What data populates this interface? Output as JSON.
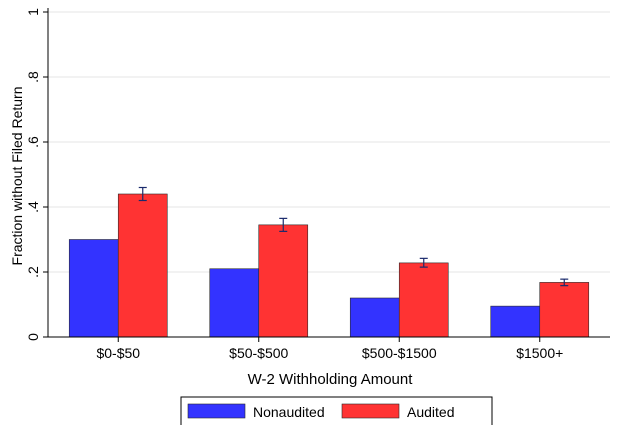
{
  "chart_data": {
    "type": "bar",
    "title": "",
    "xlabel": "W-2 Withholding Amount",
    "ylabel": "Fraction without Filed Return",
    "ylim": [
      0,
      1
    ],
    "yticks": [
      0,
      0.2,
      0.4,
      0.6,
      0.8,
      1
    ],
    "ytick_labels": [
      "0",
      ".2",
      ".4",
      ".6",
      ".8",
      "1"
    ],
    "grid": true,
    "legend_position": "bottom",
    "categories": [
      "$0-$50",
      "$50-$500",
      "$500-$1500",
      "$1500+"
    ],
    "series": [
      {
        "name": "Nonaudited",
        "color": "#3333ff",
        "values": [
          0.3,
          0.21,
          0.12,
          0.095
        ]
      },
      {
        "name": "Audited",
        "color": "#ff3333",
        "values": [
          0.44,
          0.345,
          0.228,
          0.168
        ],
        "error": [
          [
            0.42,
            0.46
          ],
          [
            0.325,
            0.365
          ],
          [
            0.215,
            0.242
          ],
          [
            0.158,
            0.178
          ]
        ]
      }
    ]
  }
}
